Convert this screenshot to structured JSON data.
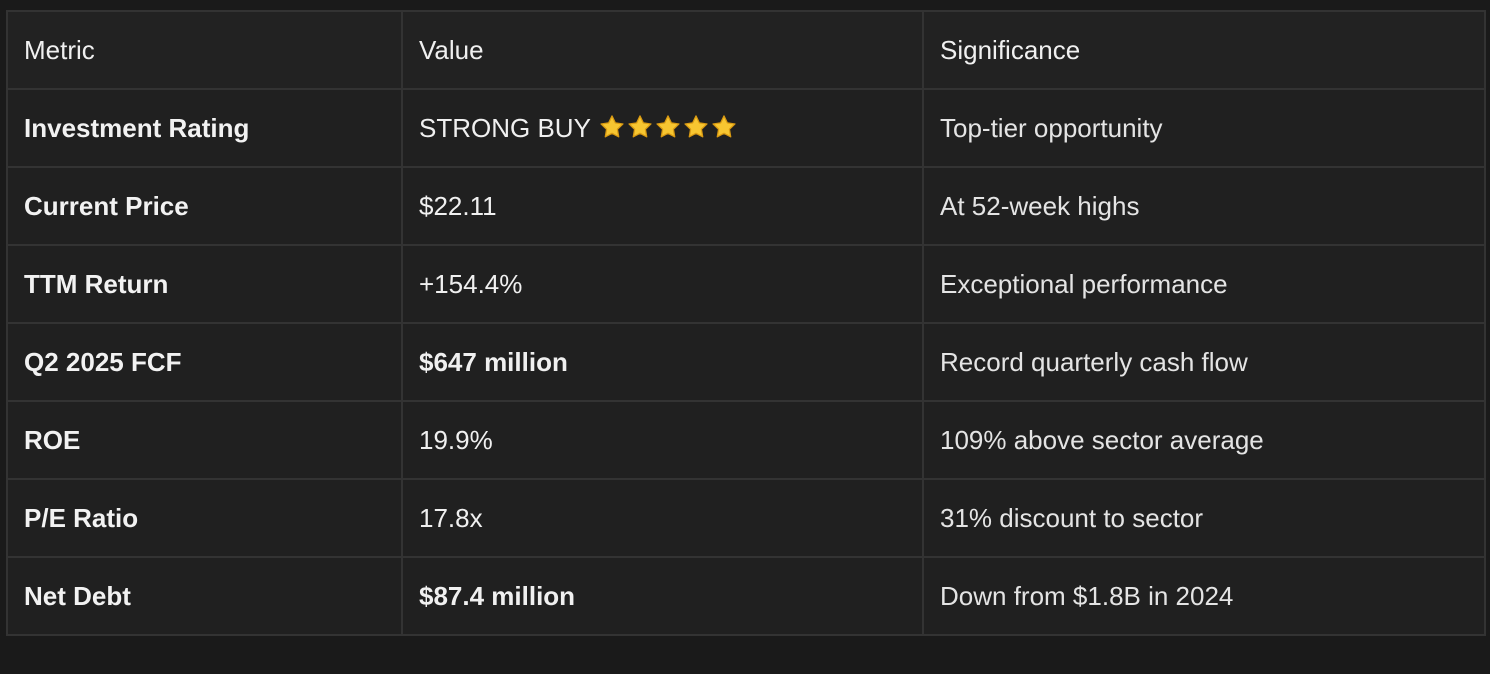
{
  "table": {
    "headers": [
      "Metric",
      "Value",
      "Significance"
    ],
    "rows": [
      {
        "metric": "Investment Rating",
        "value": "STRONG BUY",
        "significance": "Top-tier opportunity",
        "stars": 5
      },
      {
        "metric": "Current Price",
        "value": "$22.11",
        "significance": "At 52-week highs"
      },
      {
        "metric": "TTM Return",
        "value": "+154.4%",
        "significance": "Exceptional performance"
      },
      {
        "metric": "Q2 2025 FCF",
        "value": "$647 million",
        "significance": "Record quarterly cash flow"
      },
      {
        "metric": "ROE",
        "value": "19.9%",
        "significance": "109% above sector average"
      },
      {
        "metric": "P/E Ratio",
        "value": "17.8x",
        "significance": "31% discount to sector"
      },
      {
        "metric": "Net Debt",
        "value": "$87.4 million",
        "significance": "Down from $1.8B in 2024"
      }
    ]
  },
  "icons": {
    "star": "star-icon"
  },
  "colors": {
    "background": "#1a1a1a",
    "cell": "#202020",
    "border": "#333333",
    "text": "#ececec",
    "star_fill": "#f7c631",
    "star_stroke": "#d99a12"
  }
}
